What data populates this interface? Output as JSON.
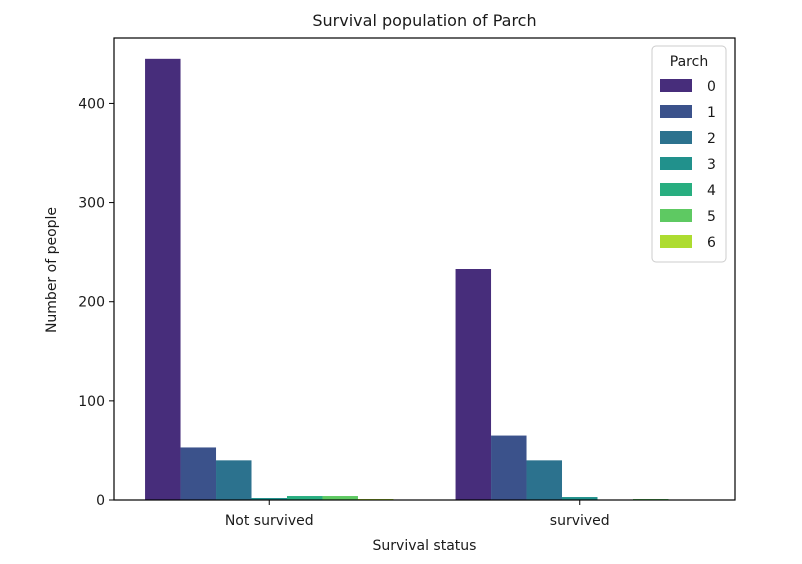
{
  "chart_data": {
    "type": "bar",
    "title": "Survival population of Parch",
    "xlabel": "Survival status",
    "ylabel": "Number of people",
    "categories": [
      "Not survived",
      "survived"
    ],
    "ylim": [
      0,
      466
    ],
    "yticks": [
      0,
      100,
      200,
      300,
      400
    ],
    "grid": false,
    "legend": {
      "title": "Parch",
      "placement": "top-right"
    },
    "series": [
      {
        "name": "0",
        "color": "#472d7b",
        "values": [
          445,
          233
        ]
      },
      {
        "name": "1",
        "color": "#3b528b",
        "values": [
          53,
          65
        ]
      },
      {
        "name": "2",
        "color": "#2c728e",
        "values": [
          40,
          40
        ]
      },
      {
        "name": "3",
        "color": "#21918c",
        "values": [
          2,
          3
        ]
      },
      {
        "name": "4",
        "color": "#28ae80",
        "values": [
          4,
          0
        ]
      },
      {
        "name": "5",
        "color": "#5ec962",
        "values": [
          4,
          1
        ]
      },
      {
        "name": "6",
        "color": "#addc30",
        "values": [
          1,
          0
        ]
      }
    ]
  }
}
